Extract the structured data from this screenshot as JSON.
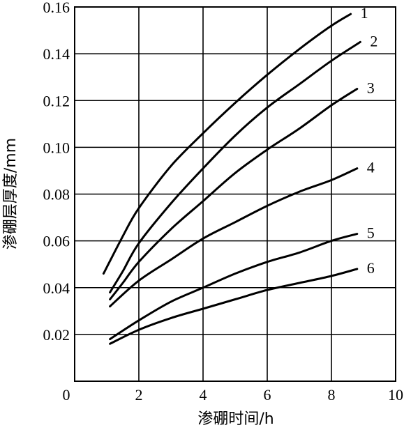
{
  "chart_data": {
    "type": "line",
    "xlabel": "渗硼时间/h",
    "ylabel": "渗硼层厚度/mm",
    "xlim": [
      0,
      10
    ],
    "ylim": [
      0,
      0.16
    ],
    "x_ticks": [
      "0",
      "2",
      "4",
      "6",
      "8",
      "10"
    ],
    "y_ticks": [
      "0.02",
      "0.04",
      "0.06",
      "0.08",
      "0.10",
      "0.12",
      "0.14",
      "0.16"
    ],
    "grid": true,
    "series": [
      {
        "name": "1",
        "x": [
          0.9,
          1.5,
          2,
          3,
          4,
          5,
          6,
          7,
          8,
          8.6
        ],
        "y": [
          0.046,
          0.062,
          0.074,
          0.092,
          0.106,
          0.119,
          0.131,
          0.142,
          0.152,
          0.157
        ]
      },
      {
        "name": "2",
        "x": [
          1.1,
          1.5,
          2,
          3,
          4,
          5,
          6,
          7,
          8,
          8.9
        ],
        "y": [
          0.038,
          0.047,
          0.059,
          0.076,
          0.091,
          0.105,
          0.117,
          0.127,
          0.137,
          0.145
        ]
      },
      {
        "name": "3",
        "x": [
          1.1,
          1.5,
          2,
          3,
          4,
          5,
          6,
          7,
          8,
          8.8
        ],
        "y": [
          0.035,
          0.042,
          0.051,
          0.065,
          0.077,
          0.089,
          0.099,
          0.108,
          0.118,
          0.125
        ]
      },
      {
        "name": "4",
        "x": [
          1.1,
          2,
          3,
          4,
          5,
          6,
          7,
          8,
          8.8
        ],
        "y": [
          0.032,
          0.043,
          0.052,
          0.061,
          0.068,
          0.075,
          0.081,
          0.086,
          0.091
        ]
      },
      {
        "name": "5",
        "x": [
          1.1,
          2,
          3,
          4,
          5,
          6,
          7,
          8,
          8.8
        ],
        "y": [
          0.018,
          0.026,
          0.034,
          0.04,
          0.046,
          0.051,
          0.055,
          0.06,
          0.063
        ]
      },
      {
        "name": "6",
        "x": [
          1.1,
          2,
          3,
          4,
          5,
          6,
          7,
          8,
          8.8
        ],
        "y": [
          0.016,
          0.022,
          0.027,
          0.031,
          0.035,
          0.039,
          0.042,
          0.045,
          0.048
        ]
      }
    ]
  }
}
